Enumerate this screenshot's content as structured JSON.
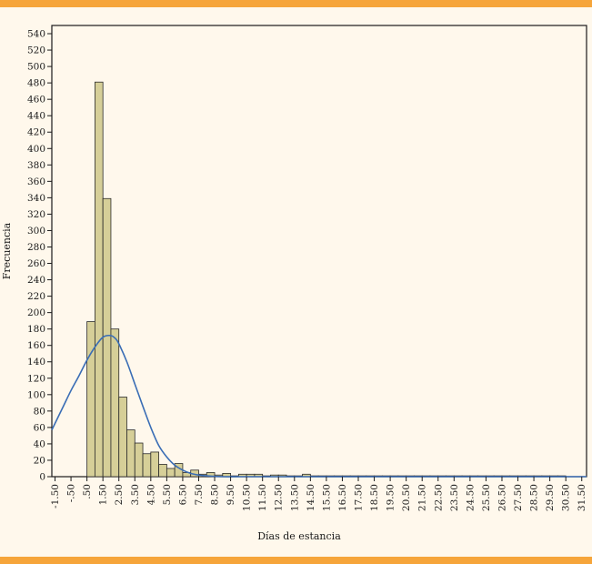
{
  "chart_data": {
    "type": "bar",
    "xlabel": "Días de estancia",
    "ylabel": "Frecuencia",
    "ylim": [
      0,
      550
    ],
    "y_ticks": [
      0,
      20,
      40,
      60,
      80,
      100,
      120,
      140,
      160,
      180,
      200,
      220,
      240,
      260,
      280,
      300,
      320,
      340,
      360,
      380,
      400,
      420,
      440,
      460,
      480,
      500,
      520,
      540
    ],
    "x_range": [
      -1.7,
      31.8
    ],
    "x_tick_values": [
      -1.5,
      -0.5,
      0.5,
      1.5,
      2.5,
      3.5,
      4.5,
      5.5,
      6.5,
      7.5,
      8.5,
      9.5,
      10.5,
      11.5,
      12.5,
      13.5,
      14.5,
      15.5,
      16.5,
      17.5,
      18.5,
      19.5,
      20.5,
      21.5,
      22.5,
      23.5,
      24.5,
      25.5,
      26.5,
      27.5,
      28.5,
      29.5,
      30.5,
      31.5
    ],
    "x_tick_labels": [
      "-1.50",
      "-.50",
      ".50",
      "1.50",
      "2.50",
      "3.50",
      "4.50",
      "5.50",
      "6.50",
      "7.50",
      "8.50",
      "9.50",
      "10.50",
      "11.50",
      "12.50",
      "13.50",
      "14.50",
      "15.50",
      "16.50",
      "17.50",
      "18.50",
      "19.50",
      "20.50",
      "21.50",
      "22.50",
      "23.50",
      "24.50",
      "25.50",
      "26.50",
      "27.50",
      "28.50",
      "29.50",
      "30.50",
      "31.50"
    ],
    "bins": [
      {
        "from": -0.5,
        "to": 0.5,
        "value": 0
      },
      {
        "from": 0.5,
        "to": 1.0,
        "value": 189
      },
      {
        "from": 1.0,
        "to": 1.5,
        "value": 481
      },
      {
        "from": 1.5,
        "to": 2.0,
        "value": 339
      },
      {
        "from": 2.0,
        "to": 2.5,
        "value": 180
      },
      {
        "from": 2.5,
        "to": 3.0,
        "value": 97
      },
      {
        "from": 3.0,
        "to": 3.5,
        "value": 57
      },
      {
        "from": 3.5,
        "to": 4.0,
        "value": 41
      },
      {
        "from": 4.0,
        "to": 4.5,
        "value": 28
      },
      {
        "from": 4.5,
        "to": 5.0,
        "value": 30
      },
      {
        "from": 5.0,
        "to": 5.5,
        "value": 15
      },
      {
        "from": 5.5,
        "to": 6.0,
        "value": 10
      },
      {
        "from": 6.0,
        "to": 6.5,
        "value": 16
      },
      {
        "from": 6.5,
        "to": 7.0,
        "value": 5
      },
      {
        "from": 7.0,
        "to": 7.5,
        "value": 8
      },
      {
        "from": 7.5,
        "to": 8.0,
        "value": 3
      },
      {
        "from": 8.0,
        "to": 8.5,
        "value": 5
      },
      {
        "from": 8.5,
        "to": 9.0,
        "value": 2
      },
      {
        "from": 9.0,
        "to": 9.5,
        "value": 4
      },
      {
        "from": 9.5,
        "to": 10.0,
        "value": 1
      },
      {
        "from": 10.0,
        "to": 10.5,
        "value": 3
      },
      {
        "from": 10.5,
        "to": 11.0,
        "value": 3
      },
      {
        "from": 11.0,
        "to": 11.5,
        "value": 3
      },
      {
        "from": 11.5,
        "to": 12.0,
        "value": 1
      },
      {
        "from": 12.0,
        "to": 12.5,
        "value": 2
      },
      {
        "from": 12.5,
        "to": 13.0,
        "value": 2
      },
      {
        "from": 13.0,
        "to": 13.5,
        "value": 1
      },
      {
        "from": 13.5,
        "to": 14.0,
        "value": 1
      },
      {
        "from": 14.0,
        "to": 14.5,
        "value": 3
      },
      {
        "from": 14.5,
        "to": 15.0,
        "value": 1
      },
      {
        "from": 15.0,
        "to": 15.5,
        "value": 1
      },
      {
        "from": 15.5,
        "to": 16.0,
        "value": 1
      },
      {
        "from": 16.0,
        "to": 16.5,
        "value": 1
      },
      {
        "from": 16.5,
        "to": 17.0,
        "value": 1
      },
      {
        "from": 17.0,
        "to": 17.5,
        "value": 1
      },
      {
        "from": 17.5,
        "to": 18.0,
        "value": 1
      },
      {
        "from": 18.0,
        "to": 18.5,
        "value": 1
      },
      {
        "from": 18.5,
        "to": 19.0,
        "value": 1
      },
      {
        "from": 19.0,
        "to": 19.5,
        "value": 1
      },
      {
        "from": 19.5,
        "to": 20.0,
        "value": 1
      },
      {
        "from": 20.0,
        "to": 20.5,
        "value": 1
      },
      {
        "from": 20.5,
        "to": 21.0,
        "value": 1
      },
      {
        "from": 21.0,
        "to": 21.5,
        "value": 1
      },
      {
        "from": 21.5,
        "to": 22.0,
        "value": 1
      },
      {
        "from": 22.0,
        "to": 22.5,
        "value": 1
      },
      {
        "from": 22.5,
        "to": 23.0,
        "value": 1
      },
      {
        "from": 23.0,
        "to": 23.5,
        "value": 1
      },
      {
        "from": 23.5,
        "to": 24.0,
        "value": 1
      },
      {
        "from": 24.0,
        "to": 24.5,
        "value": 1
      },
      {
        "from": 24.5,
        "to": 25.0,
        "value": 1
      },
      {
        "from": 25.0,
        "to": 25.5,
        "value": 1
      },
      {
        "from": 25.5,
        "to": 26.0,
        "value": 1
      },
      {
        "from": 26.0,
        "to": 26.5,
        "value": 1
      },
      {
        "from": 26.5,
        "to": 27.0,
        "value": 1
      },
      {
        "from": 27.0,
        "to": 27.5,
        "value": 1
      },
      {
        "from": 27.5,
        "to": 28.0,
        "value": 1
      },
      {
        "from": 28.0,
        "to": 28.5,
        "value": 1
      },
      {
        "from": 28.5,
        "to": 29.0,
        "value": 1
      },
      {
        "from": 29.0,
        "to": 29.5,
        "value": 1
      },
      {
        "from": 29.5,
        "to": 30.0,
        "value": 1
      },
      {
        "from": 30.0,
        "to": 30.5,
        "value": 1
      }
    ],
    "normal_curve": {
      "x": [
        -1.7,
        -1.0,
        -0.5,
        0.0,
        0.5,
        1.0,
        1.5,
        2.0,
        2.3,
        2.5,
        3.0,
        3.5,
        4.0,
        4.5,
        5.0,
        5.5,
        6.0,
        6.5,
        7.0,
        7.5,
        8.0,
        9.0,
        10.0,
        12.0,
        15.0,
        20.0,
        31.8
      ],
      "y": [
        57,
        85,
        105,
        123,
        142,
        158,
        170,
        172,
        168,
        162,
        140,
        113,
        86,
        60,
        38,
        24,
        14,
        8,
        4,
        2,
        1,
        0,
        0,
        0,
        0,
        0,
        0
      ]
    },
    "colors": {
      "bar_fill": "#d6cf98",
      "bar_stroke": "#2a2a2a",
      "curve": "#3a6db5",
      "plot_background": "#fff8ec",
      "accent_band": "#f6a53a"
    },
    "grid": false,
    "legend": "none"
  }
}
